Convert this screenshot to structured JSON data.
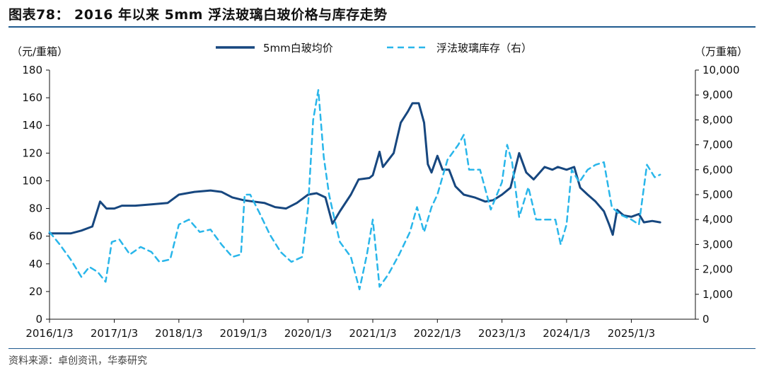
{
  "header": {
    "title": "图表78：  2016 年以来 5mm 浮法玻璃白玻价格与库存走势"
  },
  "footer": {
    "source": "资料来源：卓创资讯，华泰研究"
  },
  "colors": {
    "price": "#17477f",
    "inventory": "#29b6ea",
    "rule": "#1f5a8f"
  },
  "chart_data": {
    "type": "line",
    "left_axis_unit": "（元/重箱）",
    "right_axis_unit": "（万重箱）",
    "y_left_range": [
      0,
      180
    ],
    "y_left_ticks": [
      "0",
      "20",
      "40",
      "60",
      "80",
      "100",
      "120",
      "140",
      "160",
      "180"
    ],
    "y_right_range": [
      0,
      10000
    ],
    "y_right_ticks": [
      "0",
      "1,000",
      "2,000",
      "3,000",
      "4,000",
      "5,000",
      "6,000",
      "7,000",
      "8,000",
      "9,000",
      "10,000"
    ],
    "x_range": [
      "2016-01-03",
      "2025-12-31"
    ],
    "x_ticks": [
      "2016/1/3",
      "2017/1/3",
      "2018/1/3",
      "2019/1/3",
      "2020/1/3",
      "2021/1/3",
      "2022/1/3",
      "2023/1/3",
      "2024/1/3",
      "2025/1/3"
    ],
    "grid": false,
    "legend_position": "top-center",
    "series": [
      {
        "name": "5mm白玻均价",
        "axis": "left",
        "style": "solid",
        "points": [
          [
            "2016-01-03",
            62
          ],
          [
            "2016-03-01",
            62
          ],
          [
            "2016-05-01",
            62
          ],
          [
            "2016-07-01",
            64
          ],
          [
            "2016-09-01",
            67
          ],
          [
            "2016-10-15",
            85
          ],
          [
            "2016-11-20",
            80
          ],
          [
            "2017-01-03",
            80
          ],
          [
            "2017-02-15",
            82
          ],
          [
            "2017-05-01",
            82
          ],
          [
            "2017-08-01",
            83
          ],
          [
            "2017-11-01",
            84
          ],
          [
            "2018-01-03",
            90
          ],
          [
            "2018-04-01",
            92
          ],
          [
            "2018-07-01",
            93
          ],
          [
            "2018-09-01",
            92
          ],
          [
            "2018-11-01",
            88
          ],
          [
            "2019-01-03",
            86
          ],
          [
            "2019-03-01",
            85
          ],
          [
            "2019-05-01",
            84
          ],
          [
            "2019-07-01",
            81
          ],
          [
            "2019-09-01",
            80
          ],
          [
            "2019-11-01",
            84
          ],
          [
            "2020-01-03",
            90
          ],
          [
            "2020-02-20",
            91
          ],
          [
            "2020-04-10",
            88
          ],
          [
            "2020-05-20",
            69
          ],
          [
            "2020-07-01",
            78
          ],
          [
            "2020-09-01",
            90
          ],
          [
            "2020-10-15",
            101
          ],
          [
            "2020-12-15",
            102
          ],
          [
            "2021-01-03",
            104
          ],
          [
            "2021-02-10",
            121
          ],
          [
            "2021-03-01",
            110
          ],
          [
            "2021-04-01",
            115
          ],
          [
            "2021-05-01",
            120
          ],
          [
            "2021-06-10",
            142
          ],
          [
            "2021-07-20",
            150
          ],
          [
            "2021-08-15",
            156
          ],
          [
            "2021-09-20",
            156
          ],
          [
            "2021-10-20",
            142
          ],
          [
            "2021-11-10",
            112
          ],
          [
            "2021-12-01",
            106
          ],
          [
            "2022-01-03",
            118
          ],
          [
            "2022-02-01",
            108
          ],
          [
            "2022-03-10",
            108
          ],
          [
            "2022-04-15",
            96
          ],
          [
            "2022-06-01",
            90
          ],
          [
            "2022-08-01",
            88
          ],
          [
            "2022-10-01",
            85
          ],
          [
            "2022-11-15",
            86
          ],
          [
            "2023-01-03",
            90
          ],
          [
            "2023-02-20",
            95
          ],
          [
            "2023-04-10",
            120
          ],
          [
            "2023-05-20",
            106
          ],
          [
            "2023-07-01",
            101
          ],
          [
            "2023-09-01",
            110
          ],
          [
            "2023-10-15",
            108
          ],
          [
            "2023-11-15",
            110
          ],
          [
            "2024-01-03",
            108
          ],
          [
            "2024-02-15",
            110
          ],
          [
            "2024-03-20",
            95
          ],
          [
            "2024-05-01",
            90
          ],
          [
            "2024-06-15",
            85
          ],
          [
            "2024-08-01",
            78
          ],
          [
            "2024-09-01",
            68
          ],
          [
            "2024-09-20",
            61
          ],
          [
            "2024-10-15",
            79
          ],
          [
            "2024-11-20",
            75
          ],
          [
            "2025-01-03",
            74
          ],
          [
            "2025-02-15",
            76
          ],
          [
            "2025-03-15",
            70
          ],
          [
            "2025-05-01",
            71
          ],
          [
            "2025-06-15",
            70
          ]
        ]
      },
      {
        "name": "浮法玻璃库存（右）",
        "axis": "right",
        "style": "dashed",
        "points": [
          [
            "2016-01-03",
            3500
          ],
          [
            "2016-03-01",
            3000
          ],
          [
            "2016-05-01",
            2400
          ],
          [
            "2016-07-01",
            1700
          ],
          [
            "2016-08-15",
            2100
          ],
          [
            "2016-10-01",
            1900
          ],
          [
            "2016-11-15",
            1500
          ],
          [
            "2016-12-20",
            3100
          ],
          [
            "2017-02-01",
            3200
          ],
          [
            "2017-04-01",
            2600
          ],
          [
            "2017-06-01",
            2900
          ],
          [
            "2017-08-01",
            2700
          ],
          [
            "2017-09-15",
            2300
          ],
          [
            "2017-11-15",
            2400
          ],
          [
            "2018-01-03",
            3800
          ],
          [
            "2018-03-01",
            4000
          ],
          [
            "2018-05-01",
            3500
          ],
          [
            "2018-07-01",
            3600
          ],
          [
            "2018-09-01",
            3000
          ],
          [
            "2018-11-01",
            2500
          ],
          [
            "2018-12-20",
            2600
          ],
          [
            "2019-01-10",
            5000
          ],
          [
            "2019-02-10",
            5000
          ],
          [
            "2019-04-01",
            4300
          ],
          [
            "2019-06-01",
            3400
          ],
          [
            "2019-08-01",
            2700
          ],
          [
            "2019-10-01",
            2300
          ],
          [
            "2019-12-01",
            2500
          ],
          [
            "2020-01-03",
            4500
          ],
          [
            "2020-02-01",
            8000
          ],
          [
            "2020-03-01",
            9200
          ],
          [
            "2020-04-01",
            6500
          ],
          [
            "2020-05-01",
            5000
          ],
          [
            "2020-06-01",
            4000
          ],
          [
            "2020-07-01",
            3100
          ],
          [
            "2020-09-01",
            2500
          ],
          [
            "2020-10-20",
            1200
          ],
          [
            "2020-12-01",
            2600
          ],
          [
            "2021-01-03",
            4000
          ],
          [
            "2021-02-10",
            1300
          ],
          [
            "2021-04-01",
            1800
          ],
          [
            "2021-06-01",
            2600
          ],
          [
            "2021-08-01",
            3500
          ],
          [
            "2021-09-10",
            4500
          ],
          [
            "2021-10-20",
            3500
          ],
          [
            "2021-12-01",
            4500
          ],
          [
            "2022-01-03",
            5000
          ],
          [
            "2022-03-01",
            6400
          ],
          [
            "2022-05-01",
            7000
          ],
          [
            "2022-06-01",
            7400
          ],
          [
            "2022-07-01",
            6000
          ],
          [
            "2022-09-01",
            6000
          ],
          [
            "2022-11-01",
            4400
          ],
          [
            "2023-01-03",
            5500
          ],
          [
            "2023-02-01",
            7000
          ],
          [
            "2023-03-01",
            6300
          ],
          [
            "2023-04-10",
            4100
          ],
          [
            "2023-06-01",
            5300
          ],
          [
            "2023-07-15",
            4000
          ],
          [
            "2023-09-01",
            4000
          ],
          [
            "2023-11-01",
            4000
          ],
          [
            "2023-12-01",
            3000
          ],
          [
            "2024-01-03",
            3800
          ],
          [
            "2024-02-01",
            6000
          ],
          [
            "2024-03-15",
            5500
          ],
          [
            "2024-05-01",
            6000
          ],
          [
            "2024-06-15",
            6200
          ],
          [
            "2024-08-01",
            6300
          ],
          [
            "2024-09-15",
            4500
          ],
          [
            "2024-11-01",
            4200
          ],
          [
            "2025-01-03",
            4000
          ],
          [
            "2025-02-15",
            3800
          ],
          [
            "2025-04-01",
            6200
          ],
          [
            "2025-05-15",
            5700
          ],
          [
            "2025-06-15",
            5800
          ]
        ]
      }
    ]
  }
}
